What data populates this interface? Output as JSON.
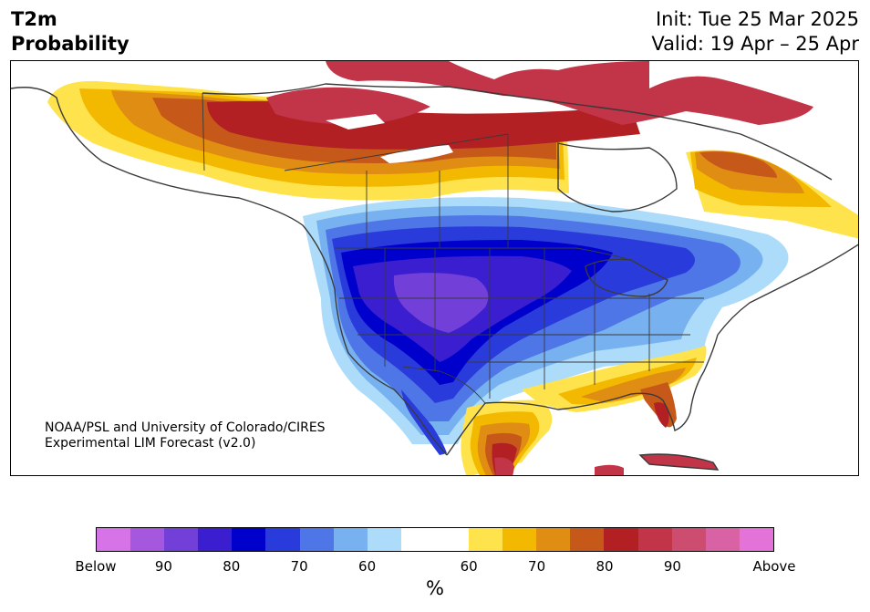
{
  "title": {
    "left_line1": "T2m",
    "left_line2": "Probability",
    "right_line1": "Init: Tue 25 Mar 2025",
    "right_line2": "Valid: 19 Apr – 25 Apr"
  },
  "credit": {
    "line1": "NOAA/PSL and University of Colorado/CIRES",
    "line2": "Experimental LIM Forecast (v2.0)"
  },
  "colorbar": {
    "colors": [
      "#d673e6",
      "#a557dd",
      "#7240d9",
      "#3a1ecf",
      "#0000cc",
      "#2a3bdb",
      "#4f76e6",
      "#78b1f0",
      "#acdcfa",
      "#ffffff",
      "#ffffff",
      "#ffe34d",
      "#f2b900",
      "#df8d13",
      "#c65819",
      "#b22024",
      "#c23448",
      "#cd4d70",
      "#d862a3",
      "#e373d8"
    ],
    "tick_labels": [
      "Below",
      "90",
      "80",
      "70",
      "60",
      "60",
      "70",
      "80",
      "90",
      "Above"
    ],
    "unit": "%"
  },
  "map": {
    "region": "North America",
    "field": "T2m Probability",
    "colors": {
      "above_light": "#ffe34d",
      "above_60": "#f2b900",
      "above_65": "#df8d13",
      "above_70": "#c65819",
      "above_75": "#b22024",
      "above_80": "#c23448",
      "below_60": "#acdcfa",
      "below_65": "#78b1f0",
      "below_70": "#4f76e6",
      "below_75": "#2a3bdb",
      "below_80": "#0000cc",
      "below_85": "#3a1ecf",
      "below_90": "#7240d9",
      "outline": "#3a3a3a"
    }
  }
}
